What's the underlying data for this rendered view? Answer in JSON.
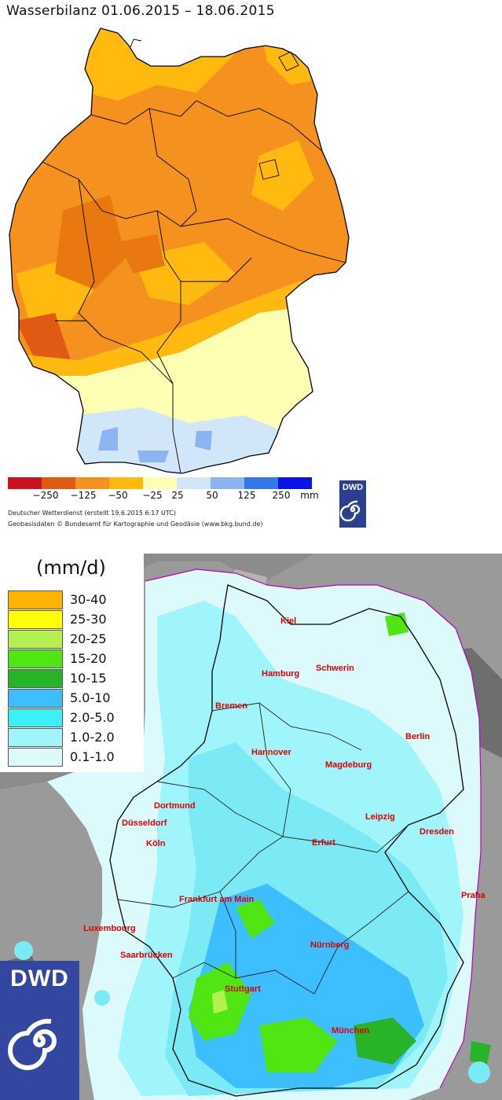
{
  "water_balance_map": {
    "title": "Wasserbilanz 01.06.2015 – 18.06.2015",
    "legend": {
      "colors": [
        "#c8141e",
        "#e05a14",
        "#f5911e",
        "#ffb90f",
        "#ffffb4",
        "#d2e6fa",
        "#8cb4f0",
        "#3278e6",
        "#0a14e6"
      ],
      "tick_labels": [
        "−250",
        "−125",
        "−50",
        "−25",
        "25",
        "50",
        "125",
        "250",
        "mm"
      ]
    },
    "credit_line_1": "Deutscher Wetterdienst (erstellt 19.6.2015 6:17 UTC)",
    "credit_line_2": "Geobasisdaten © Bundesamt für Kartographie und Geodäsie (www.bkg.bund.de)",
    "logo_text": "DWD"
  },
  "precip_map": {
    "unit": "(mm/d)",
    "legend": [
      {
        "label": "30-40",
        "color": "#ffb400"
      },
      {
        "label": "25-30",
        "color": "#ffff00"
      },
      {
        "label": "20-25",
        "color": "#b4f050"
      },
      {
        "label": "15-20",
        "color": "#50e614"
      },
      {
        "label": "10-15",
        "color": "#28b428"
      },
      {
        "label": "5.0-10",
        "color": "#3cbeff"
      },
      {
        "label": "2.0-5.0",
        "color": "#3cf0f5"
      },
      {
        "label": "1.0-2.0",
        "color": "#a0f5fa"
      },
      {
        "label": "0.1-1.0",
        "color": "#dcfafc"
      }
    ],
    "cities": [
      "Kiel",
      "Hamburg",
      "Schwerin",
      "Bremen",
      "Berlin",
      "Hannover",
      "Magdeburg",
      "Dortmund",
      "Düsseldorf",
      "Leipzig",
      "Dresden",
      "Köln",
      "Erfurt",
      "Frankfurt am Main",
      "Praha",
      "Luxembourg",
      "Nürnberg",
      "Saarbrücken",
      "Stuttgart",
      "München"
    ],
    "logo_text": "DWD"
  }
}
